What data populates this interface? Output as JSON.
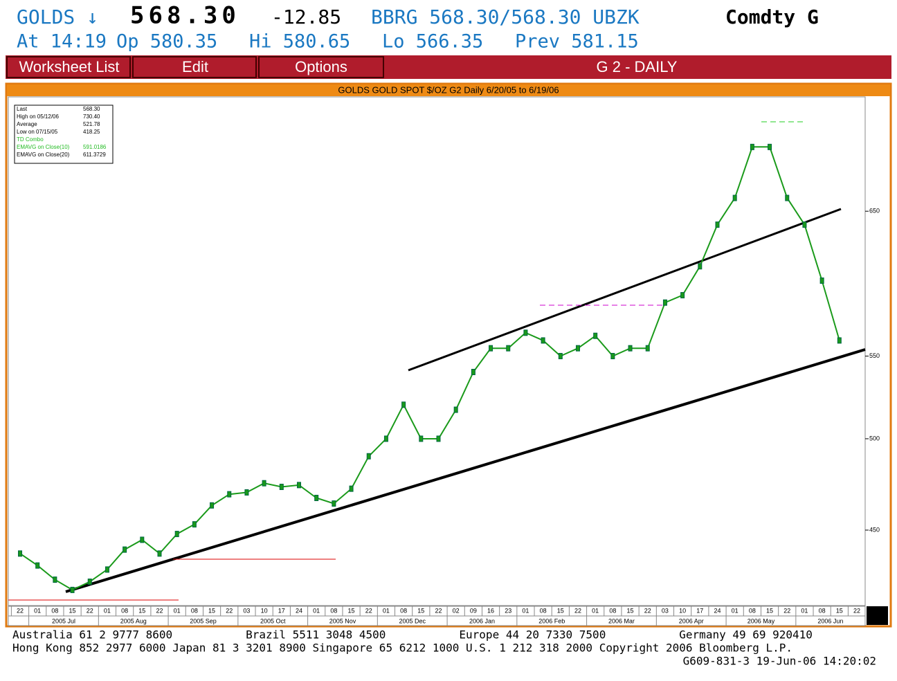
{
  "header": {
    "ticker": "GOLDS ↓",
    "last": "568.30",
    "change": "-12.85",
    "bbrg": "BBRG 568.30/568.30 UBZK",
    "security": "Comdty G",
    "quote": [
      "At 14:19",
      "Op 580.35",
      "Hi 580.65",
      "Lo 566.35",
      "Prev 581.15"
    ]
  },
  "toolbar": {
    "buttons": [
      "Worksheet List",
      "Edit",
      "Options"
    ],
    "title": "G 2 - DAILY"
  },
  "legend": {
    "rows": [
      {
        "label": "Last",
        "value": "568.30",
        "color": "#000000"
      },
      {
        "label": "High on  05/12/06",
        "value": "730.40",
        "color": "#000000"
      },
      {
        "label": "Average",
        "value": "521.78",
        "color": "#000000"
      },
      {
        "label": "Low on  07/15/05",
        "value": "418.25",
        "color": "#000000"
      },
      {
        "label": "TD Combo",
        "color": "#22bb22"
      },
      {
        "label": "EMAVG on Close(10)",
        "value": "591.0186",
        "color": "#22bb22"
      },
      {
        "label": "EMAVG on Close(20)",
        "value": "611.3729",
        "color": "#000000"
      }
    ]
  },
  "chart_data": {
    "type": "line",
    "title": "GOLDS GOLD SPOT $/OZ G2 Daily 6/20/05 to 6/19/06",
    "categories": [
      "22",
      "01",
      "08",
      "15",
      "22",
      "01",
      "08",
      "15",
      "22",
      "01",
      "08",
      "15",
      "22",
      "03",
      "10",
      "17",
      "24",
      "01",
      "08",
      "15",
      "22",
      "01",
      "08",
      "15",
      "22",
      "02",
      "09",
      "16",
      "23",
      "01",
      "08",
      "15",
      "22",
      "01",
      "08",
      "15",
      "22",
      "03",
      "10",
      "17",
      "24",
      "01",
      "08",
      "15",
      "22",
      "01",
      "08",
      "15",
      "22"
    ],
    "months": [
      "2005 Jul",
      "2005 Aug",
      "2005 Sep",
      "2005 Oct",
      "2005 Nov",
      "2005 Dec",
      "2006 Jan",
      "2006 Feb",
      "2006 Mar",
      "2006 Apr",
      "2006 May",
      "2006 Jun"
    ],
    "values": [
      438,
      432,
      425,
      420,
      424,
      430,
      440,
      445,
      438,
      448,
      453,
      463,
      469,
      470,
      475,
      473,
      474,
      467,
      464,
      472,
      490,
      500,
      520,
      500,
      500,
      517,
      540,
      555,
      555,
      565,
      560,
      550,
      555,
      563,
      550,
      555,
      555,
      585,
      590,
      610,
      640,
      660,
      700,
      700,
      660,
      640,
      600,
      560,
      null
    ],
    "color": "#1a9a1a",
    "log_scale": true,
    "ylim": [
      412.5,
      741.6
    ],
    "yticks": [
      450,
      500,
      550,
      650
    ]
  },
  "footer": {
    "lines": [
      "Australia 61 2 9777 8600           Brazil 5511 3048 4500           Europe 44 20 7330 7500           Germany 49 69 920410",
      "Hong Kong 852 2977 6000 Japan 81 3 3201 8900 Singapore 65 6212 1000 U.S. 1 212 318 2000 Copyright 2006 Bloomberg L.P.",
      "G609-831-3 19-Jun-06 14:20:02"
    ]
  }
}
